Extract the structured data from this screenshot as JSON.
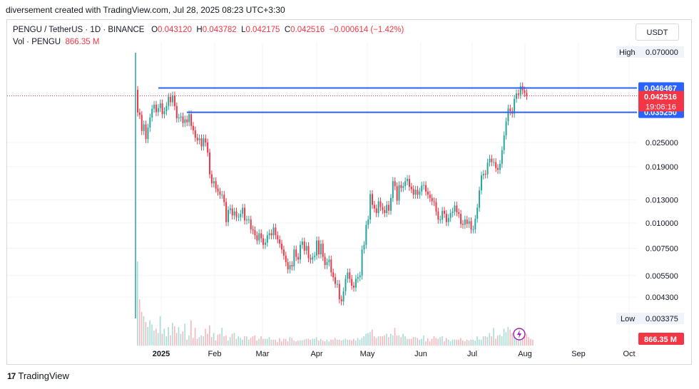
{
  "attribution": "diversement created with TradingView.com, Jul 28, 2025 08:23 UTC+3:30",
  "symbol_line": {
    "symbol": "PENGU / TetherUS · 1D · BINANCE",
    "open_label": "O",
    "open": "0.043120",
    "high_label": "H",
    "high": "0.043782",
    "low_label": "L",
    "low": "0.042175",
    "close_label": "C",
    "close": "0.042516",
    "change": "−0.000614 (−1.42%)"
  },
  "volume_line": {
    "label": "Vol · PENGU",
    "value": "866.35 M"
  },
  "currency_button": "USDT",
  "footer": {
    "logo": "17",
    "brand": "TradingView"
  },
  "colors": {
    "up": "#26a69a",
    "down": "#f23645",
    "level": "#2962ff",
    "text": "#131722",
    "grid": "#f0f3fa"
  },
  "chart_data": {
    "type": "candlestick",
    "scale": "log",
    "ylim": [
      0.003,
      0.08
    ],
    "x_ticks": [
      "2025",
      "Feb",
      "Mar",
      "Apr",
      "May",
      "Jun",
      "Jul",
      "Aug",
      "Sep",
      "Oct"
    ],
    "y_ticks": [
      "0.025000",
      "0.019000",
      "0.013000",
      "0.010000",
      "0.007500",
      "0.005500",
      "0.004300"
    ],
    "high_marker": {
      "label": "High",
      "value": "0.070000"
    },
    "low_marker": {
      "label": "Low",
      "value": "0.003375"
    },
    "last_price": {
      "value": "0.042516",
      "countdown": "19:06:16"
    },
    "volume_badge": "866.35 M",
    "horizontal_levels": [
      {
        "value": 0.046467,
        "label": "0.046467"
      },
      {
        "value": 0.03525,
        "label": "0.035250"
      }
    ],
    "closes": [
      0.0352,
      0.0342,
      0.0285,
      0.0307,
      0.026,
      0.0296,
      0.0332,
      0.0367,
      0.0384,
      0.0353,
      0.037,
      0.039,
      0.0345,
      0.0357,
      0.0379,
      0.042,
      0.0395,
      0.0427,
      0.0378,
      0.0329,
      0.0332,
      0.0336,
      0.0312,
      0.0325,
      0.0315,
      0.0345,
      0.0302,
      0.0287,
      0.0264,
      0.0256,
      0.0262,
      0.0239,
      0.0262,
      0.025,
      0.0223,
      0.0174,
      0.0157,
      0.0161,
      0.0148,
      0.0143,
      0.0138,
      0.0138,
      0.0127,
      0.0101,
      0.0116,
      0.0118,
      0.0109,
      0.0114,
      0.0107,
      0.0107,
      0.0111,
      0.0119,
      0.0103,
      0.0104,
      0.0104,
      0.0093,
      0.0092,
      0.0087,
      0.0082,
      0.0089,
      0.0084,
      0.0078,
      0.008,
      0.0087,
      0.0089,
      0.0087,
      0.0095,
      0.0087,
      0.0083,
      0.0079,
      0.0074,
      0.0069,
      0.0064,
      0.0059,
      0.0062,
      0.0061,
      0.0074,
      0.0068,
      0.0066,
      0.0078,
      0.0081,
      0.0073,
      0.0077,
      0.0067,
      0.0066,
      0.0068,
      0.0069,
      0.0082,
      0.007,
      0.0079,
      0.0068,
      0.0062,
      0.0064,
      0.0066,
      0.0057,
      0.0054,
      0.005,
      0.005,
      0.0042,
      0.0041,
      0.0046,
      0.0053,
      0.0057,
      0.0053,
      0.0049,
      0.0048,
      0.0053,
      0.0054,
      0.0055,
      0.0074,
      0.0078,
      0.0098,
      0.0104,
      0.0139,
      0.0123,
      0.0118,
      0.0112,
      0.0128,
      0.012,
      0.0116,
      0.0112,
      0.0123,
      0.0115,
      0.0133,
      0.0161,
      0.0152,
      0.0129,
      0.0154,
      0.0149,
      0.0152,
      0.0161,
      0.0165,
      0.0151,
      0.0147,
      0.0138,
      0.0146,
      0.0138,
      0.0143,
      0.0153,
      0.0154,
      0.0143,
      0.0138,
      0.0133,
      0.0128,
      0.0127,
      0.0114,
      0.0104,
      0.0104,
      0.0115,
      0.0111,
      0.0101,
      0.0106,
      0.0112,
      0.0114,
      0.0122,
      0.0113,
      0.0111,
      0.0099,
      0.0098,
      0.0104,
      0.0099,
      0.0102,
      0.0093,
      0.0093,
      0.0105,
      0.0119,
      0.0145,
      0.0172,
      0.0175,
      0.0174,
      0.0199,
      0.0208,
      0.02,
      0.02,
      0.0187,
      0.0183,
      0.0196,
      0.0229,
      0.0271,
      0.0318,
      0.0368,
      0.0357,
      0.0347,
      0.0411,
      0.0437,
      0.043,
      0.0474,
      0.0452,
      0.0439,
      0.0425
    ],
    "volume_relative": [
      1.0,
      0.55,
      0.4,
      0.35,
      0.28,
      0.22,
      0.3,
      0.25,
      0.18,
      0.2,
      0.15,
      0.35,
      0.14,
      0.2,
      0.11,
      0.22,
      0.12,
      0.27,
      0.23,
      0.15,
      0.22,
      0.14,
      0.17,
      0.26,
      0.07,
      0.12,
      0.3,
      0.09,
      0.21,
      0.08,
      0.1,
      0.12,
      0.11,
      0.2,
      0.14,
      0.24,
      0.1,
      0.15,
      0.06,
      0.13,
      0.14,
      0.21,
      0.11,
      0.12,
      0.06,
      0.1,
      0.14,
      0.15,
      0.08,
      0.11,
      0.09,
      0.07,
      0.11,
      0.11,
      0.07,
      0.09,
      0.11,
      0.12,
      0.06,
      0.08,
      0.11,
      0.08,
      0.08,
      0.08,
      0.1,
      0.07,
      0.07,
      0.07,
      0.04,
      0.09,
      0.05,
      0.08,
      0.08,
      0.05,
      0.1,
      0.09,
      0.06,
      0.05,
      0.06,
      0.06,
      0.06,
      0.07,
      0.08,
      0.08,
      0.07,
      0.08,
      0.08,
      0.1,
      0.06,
      0.08,
      0.06,
      0.05,
      0.07,
      0.05,
      0.07,
      0.07,
      0.09,
      0.07,
      0.07,
      0.06,
      0.07,
      0.08,
      0.07,
      0.07,
      0.06,
      0.08,
      0.06,
      0.09,
      0.07,
      0.09,
      0.11,
      0.14,
      0.15,
      0.16,
      0.19,
      0.11,
      0.09,
      0.11,
      0.11,
      0.11,
      0.12,
      0.14,
      0.1,
      0.14,
      0.12,
      0.21,
      0.12,
      0.12,
      0.1,
      0.14,
      0.11,
      0.08,
      0.08,
      0.08,
      0.1,
      0.1,
      0.09,
      0.07,
      0.08,
      0.12,
      0.05,
      0.09,
      0.05,
      0.08,
      0.11,
      0.09,
      0.08,
      0.1,
      0.11,
      0.05,
      0.09,
      0.07,
      0.05,
      0.07,
      0.07,
      0.07,
      0.07,
      0.09,
      0.06,
      0.05,
      0.07,
      0.06,
      0.07,
      0.07,
      0.06,
      0.11,
      0.07,
      0.07,
      0.11,
      0.11,
      0.1,
      0.15,
      0.11,
      0.21,
      0.08,
      0.12,
      0.13,
      0.11,
      0.2,
      0.16,
      0.22,
      0.19,
      0.15,
      0.13,
      0.14,
      0.11,
      0.11,
      0.14,
      0.14,
      0.14,
      0.1,
      0.08,
      0.07
    ]
  }
}
